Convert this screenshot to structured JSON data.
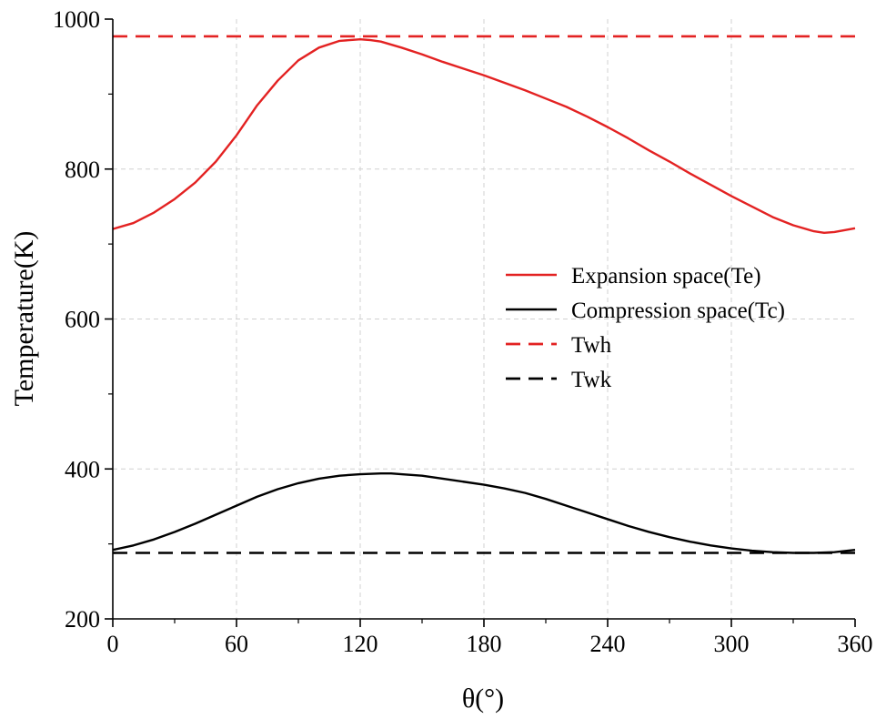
{
  "chart_data": {
    "type": "line",
    "title": "",
    "xlabel": "θ(°)",
    "ylabel": "Temperature(K)",
    "xlim": [
      0,
      360
    ],
    "ylim": [
      200,
      1000
    ],
    "xticks": [
      0,
      60,
      120,
      180,
      240,
      300,
      360
    ],
    "yticks": [
      200,
      400,
      600,
      800,
      1000
    ],
    "grid": true,
    "legend_position": "right",
    "series": [
      {
        "name": "Expansion space(Te)",
        "color": "#e32222",
        "style": "solid",
        "x": [
          0,
          10,
          20,
          30,
          40,
          50,
          60,
          70,
          80,
          90,
          100,
          110,
          120,
          125,
          130,
          140,
          150,
          160,
          170,
          180,
          190,
          200,
          210,
          220,
          230,
          240,
          250,
          260,
          270,
          280,
          290,
          300,
          310,
          320,
          330,
          340,
          345,
          350,
          360
        ],
        "y": [
          720,
          728,
          742,
          760,
          782,
          810,
          845,
          885,
          918,
          945,
          962,
          971,
          973,
          972,
          970,
          962,
          953,
          943,
          934,
          925,
          915,
          905,
          894,
          883,
          870,
          856,
          841,
          825,
          810,
          794,
          779,
          764,
          750,
          736,
          725,
          717,
          715,
          716,
          721
        ]
      },
      {
        "name": "Compression space(Tc)",
        "color": "#000000",
        "style": "solid",
        "x": [
          0,
          10,
          20,
          30,
          40,
          50,
          60,
          70,
          80,
          90,
          100,
          110,
          120,
          130,
          135,
          140,
          150,
          160,
          170,
          180,
          190,
          200,
          210,
          220,
          230,
          240,
          250,
          260,
          270,
          280,
          290,
          300,
          310,
          320,
          330,
          340,
          350,
          360
        ],
        "y": [
          292,
          298,
          306,
          316,
          327,
          339,
          351,
          363,
          373,
          381,
          387,
          391,
          393,
          394,
          394,
          393,
          391,
          387,
          383,
          379,
          374,
          368,
          360,
          351,
          342,
          333,
          324,
          316,
          309,
          303,
          298,
          294,
          291,
          289,
          288,
          288,
          289,
          292
        ]
      },
      {
        "name": "Twh",
        "color": "#e32222",
        "style": "dashed",
        "x": [
          0,
          360
        ],
        "y": [
          977,
          977
        ]
      },
      {
        "name": "Twk",
        "color": "#000000",
        "style": "dashed",
        "x": [
          0,
          360
        ],
        "y": [
          288,
          288
        ]
      }
    ]
  }
}
